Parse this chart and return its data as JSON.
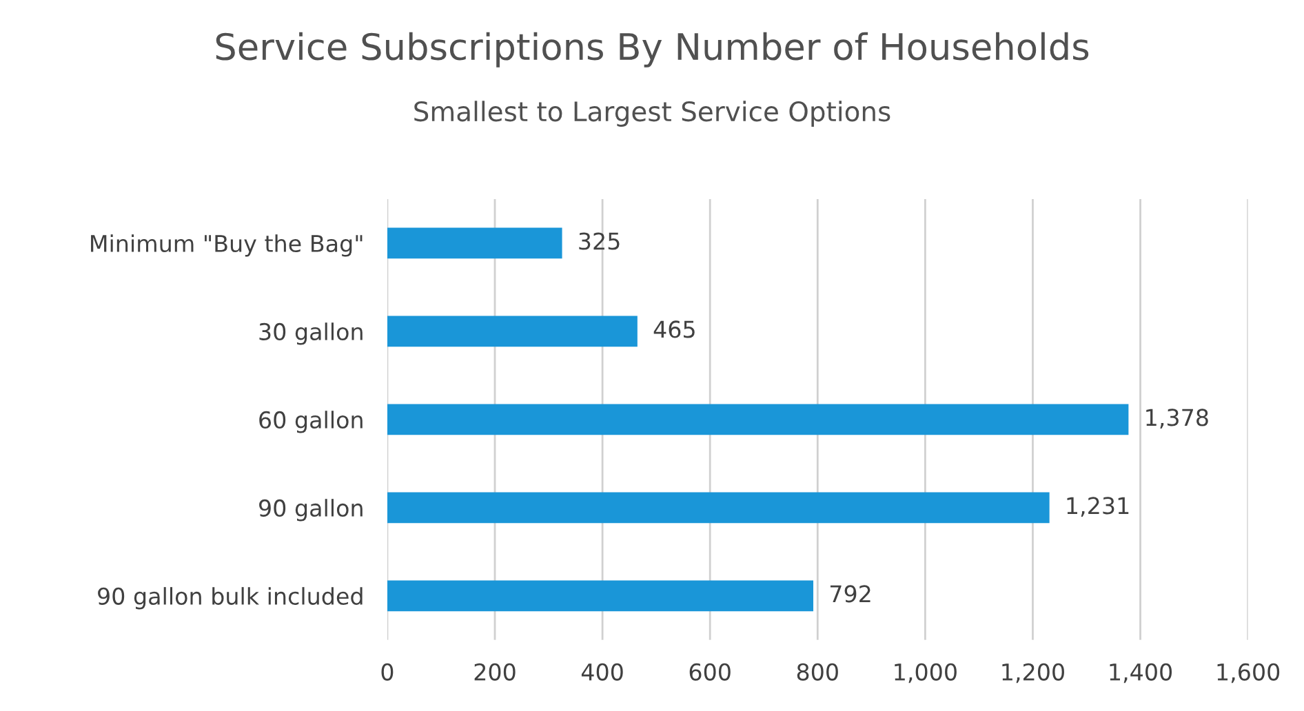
{
  "chart_data": {
    "type": "bar",
    "orientation": "horizontal",
    "title": "Service Subscriptions By Number of Households",
    "subtitle": "Smallest to Largest Service Options",
    "categories": [
      "Minimum \"Buy the Bag\"",
      "30 gallon",
      "60 gallon",
      "90 gallon",
      "90 gallon bulk included"
    ],
    "values": [
      325,
      465,
      1378,
      1231,
      792
    ],
    "value_labels": [
      "325",
      "465",
      "1,378",
      "1,231",
      "792"
    ],
    "color": "#1a96d8",
    "xlim": [
      0,
      1600
    ],
    "xticks": [
      0,
      200,
      400,
      600,
      800,
      {
        "value": 1000,
        "label": "1,000"
      },
      {
        "value": 1200,
        "label": "1,200"
      },
      {
        "value": 1400,
        "label": "1,400"
      },
      {
        "value": 1600,
        "label": "1,600"
      }
    ],
    "grid": "x"
  }
}
